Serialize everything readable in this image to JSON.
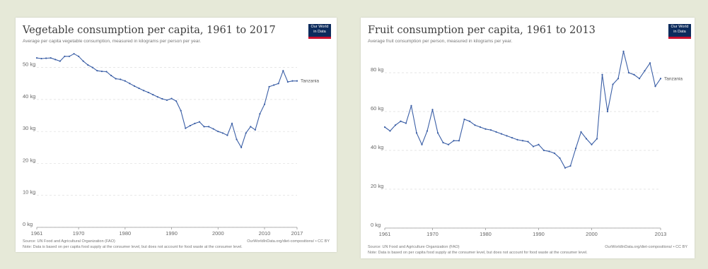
{
  "colors": {
    "line": "#3b5fa6",
    "grid": "#dddddd",
    "axis": "#999999",
    "background": "#e6e9d8"
  },
  "logo": {
    "line1": "Our World",
    "line2": "in Data"
  },
  "chart_data": [
    {
      "type": "line",
      "title": "Vegetable consumption per capita, 1961 to 2017",
      "subtitle": "Average per capita vegetable consumption, measured in kilograms per person per year.",
      "ylim": [
        0,
        55
      ],
      "xlim": [
        1961,
        2017
      ],
      "y_ticks": [
        0,
        10,
        20,
        30,
        40,
        50
      ],
      "y_tick_labels": [
        "0 kg",
        "10 kg",
        "20 kg",
        "30 kg",
        "40 kg",
        "50 kg"
      ],
      "x_ticks": [
        1961,
        1970,
        1980,
        1990,
        2000,
        2010,
        2017
      ],
      "grid": true,
      "series": [
        {
          "name": "Tanzania",
          "x": [
            1961,
            1962,
            1963,
            1964,
            1965,
            1966,
            1967,
            1968,
            1969,
            1970,
            1971,
            1972,
            1973,
            1974,
            1975,
            1976,
            1977,
            1978,
            1979,
            1980,
            1981,
            1982,
            1983,
            1984,
            1985,
            1986,
            1987,
            1988,
            1989,
            1990,
            1991,
            1992,
            1993,
            1994,
            1995,
            1996,
            1997,
            1998,
            1999,
            2000,
            2001,
            2002,
            2003,
            2004,
            2005,
            2006,
            2007,
            2008,
            2009,
            2010,
            2011,
            2012,
            2013,
            2014,
            2015,
            2016,
            2017
          ],
          "y": [
            53,
            52.8,
            52.9,
            53,
            52.5,
            52,
            53.5,
            53.5,
            54.3,
            53.5,
            52,
            50.8,
            50,
            49,
            48.8,
            48.7,
            47.5,
            46.5,
            46.3,
            45.8,
            45,
            44.2,
            43.5,
            42.8,
            42.2,
            41.5,
            40.8,
            40.2,
            39.8,
            40.3,
            39.5,
            36.5,
            31,
            31.8,
            32.5,
            33,
            31.5,
            31.5,
            30.8,
            30,
            29.5,
            28.8,
            32.5,
            27.5,
            25,
            29.5,
            31.5,
            30.5,
            35.5,
            38.5,
            44,
            44.5,
            45,
            49,
            45.5,
            45.8,
            45.8
          ]
        }
      ],
      "source": "Source: UN Food and Agricultural Organization (FAO)",
      "license": "OurWorldInData.org/diet-compositions/ • CC BY",
      "note": "Note: Data is based on per capita food supply at the consumer level, but does not account for food waste at the consumer level."
    },
    {
      "type": "line",
      "title": "Fruit consumption per capita, 1961 to 2013",
      "subtitle": "Average fruit consumption per person, measured in kilograms per year.",
      "ylim": [
        0,
        92
      ],
      "xlim": [
        1961,
        2013
      ],
      "y_ticks": [
        0,
        20,
        40,
        60,
        80
      ],
      "y_tick_labels": [
        "0 kg",
        "20 kg",
        "40 kg",
        "60 kg",
        "80 kg"
      ],
      "x_ticks": [
        1961,
        1970,
        1980,
        1990,
        2000,
        2013
      ],
      "grid": true,
      "series": [
        {
          "name": "Tanzania",
          "x": [
            1961,
            1962,
            1963,
            1964,
            1965,
            1966,
            1967,
            1968,
            1969,
            1970,
            1971,
            1972,
            1973,
            1974,
            1975,
            1976,
            1977,
            1978,
            1979,
            1980,
            1981,
            1982,
            1983,
            1984,
            1985,
            1986,
            1987,
            1988,
            1989,
            1990,
            1991,
            1992,
            1993,
            1994,
            1995,
            1996,
            1997,
            1998,
            1999,
            2000,
            2001,
            2002,
            2003,
            2004,
            2005,
            2006,
            2007,
            2008,
            2009,
            2010,
            2011,
            2012,
            2013
          ],
          "y": [
            52,
            50,
            53,
            55,
            54,
            63,
            49,
            43,
            50,
            61,
            49,
            44,
            43,
            45,
            45,
            56,
            55,
            53,
            52,
            51,
            50.5,
            49.5,
            48.5,
            47.5,
            46.5,
            45.5,
            45,
            44.5,
            42,
            43,
            40,
            39.5,
            38.5,
            36,
            31,
            32,
            41,
            49.5,
            46,
            43,
            46,
            79,
            60,
            74,
            77,
            91,
            80,
            79,
            77,
            81,
            85,
            73,
            77
          ]
        }
      ],
      "source": "Source: UN Food and Agriculture Organization (FAO)",
      "license": "OurWorldInData.org/diet-compositions/ • CC BY",
      "note": "Note: Data is based on per capita food supply at the consumer level, but does not account for food waste at the consumer level."
    }
  ]
}
